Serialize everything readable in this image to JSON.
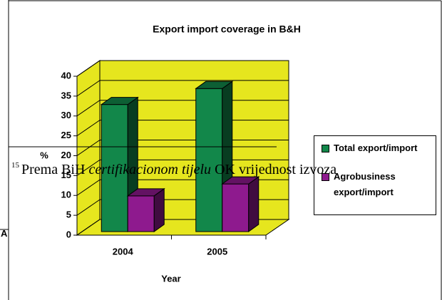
{
  "chart_data": {
    "type": "bar",
    "title": "Export import coverage in B&H",
    "categories": [
      "2004",
      "2005"
    ],
    "series": [
      {
        "name": "Total export/import",
        "color": "#12874a",
        "values": [
          32,
          36
        ]
      },
      {
        "name": "Agrobusiness export/import",
        "color": "#8e1a8e",
        "values": [
          9,
          12
        ]
      }
    ],
    "xlabel": "Year",
    "ylabel": "%",
    "ylim": [
      0,
      40
    ],
    "yticks": [
      0,
      5,
      10,
      15,
      20,
      25,
      30,
      35,
      40
    ],
    "grid": true,
    "wall_color": "#e6e61e",
    "legend": "right"
  },
  "footnote": {
    "number": "15",
    "text_parts": [
      "Prema BiH ",
      "certifikacionom tijelu",
      " OK vrijednost izvoza"
    ]
  },
  "stray_letter": "A"
}
